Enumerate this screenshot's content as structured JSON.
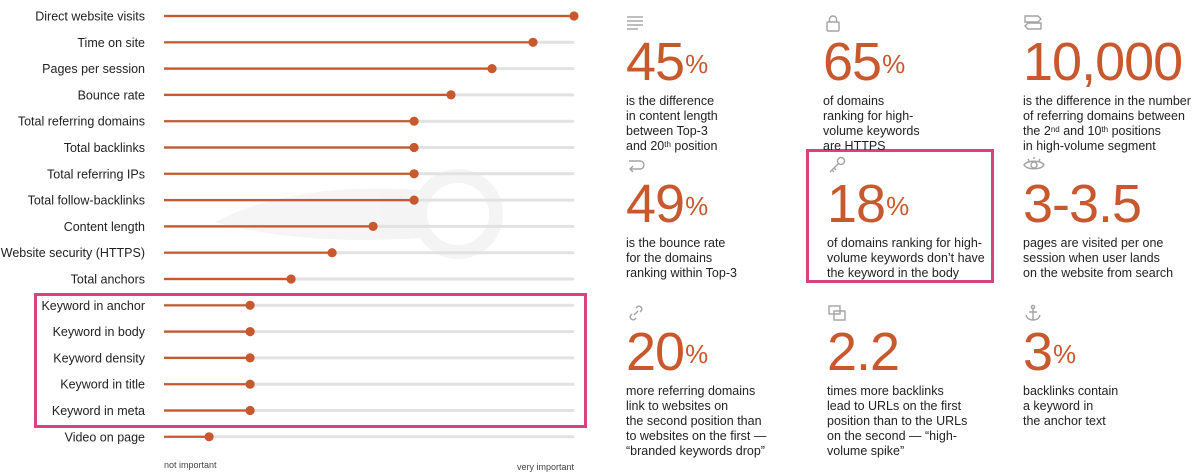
{
  "chart_data": {
    "type": "dot-bar",
    "title": "",
    "axis": {
      "min": 0,
      "max": 100,
      "low_label": "not important",
      "high_label": "very important"
    },
    "categories": [
      "Direct website visits",
      "Time on site",
      "Pages per session",
      "Bounce rate",
      "Total referring domains",
      "Total backlinks",
      "Total referring IPs",
      "Total follow-backlinks",
      "Content length",
      "Website security (HTTPS)",
      "Total anchors",
      "Keyword in anchor",
      "Keyword in body",
      "Keyword density",
      "Keyword in title",
      "Keyword in meta",
      "Video on page"
    ],
    "values": [
      100,
      90,
      80,
      70,
      61,
      61,
      61,
      61,
      51,
      41,
      31,
      21,
      21,
      21,
      21,
      21,
      11
    ],
    "highlighted": [
      "Keyword in anchor",
      "Keyword in body",
      "Keyword density",
      "Keyword in title",
      "Keyword in meta"
    ]
  },
  "colors": {
    "accent": "#c8592e",
    "highlight": "#d6437e",
    "track": "#e2e2e2"
  },
  "stats": [
    {
      "icon": "lines-icon",
      "value": "45",
      "suffix": "%",
      "lines": [
        [
          {
            "t": "is the difference"
          }
        ],
        [
          {
            "t": "in content length"
          }
        ],
        [
          {
            "t": "between Top-3"
          }
        ],
        [
          {
            "t": "and 20"
          },
          {
            "t": "th",
            "sup": true
          },
          {
            "t": " position"
          }
        ]
      ]
    },
    {
      "icon": "lock-icon",
      "value": "65",
      "suffix": "%",
      "lines": [
        [
          {
            "t": "of domains"
          }
        ],
        [
          {
            "t": "ranking for high-"
          }
        ],
        [
          {
            "t": "volume keywords"
          }
        ],
        [
          {
            "t": "are HTTPS"
          }
        ]
      ]
    },
    {
      "icon": "signpost-icon",
      "value": "10,000",
      "suffix": "",
      "lines": [
        [
          {
            "t": "is the difference in the number"
          }
        ],
        [
          {
            "t": "of referring domains between"
          }
        ],
        [
          {
            "t": "the 2"
          },
          {
            "t": "nd",
            "sup": true
          },
          {
            "t": " and 10"
          },
          {
            "t": "th",
            "sup": true
          },
          {
            "t": " positions"
          }
        ],
        [
          {
            "t": "in high-volume segment"
          }
        ]
      ]
    },
    {
      "icon": "return-arrow-icon",
      "value": "49",
      "suffix": "%",
      "lines": [
        [
          {
            "t": "is the bounce rate"
          }
        ],
        [
          {
            "t": "for the domains"
          }
        ],
        [
          {
            "t": "ranking within Top-3"
          }
        ]
      ]
    },
    {
      "icon": "key-icon",
      "value": "18",
      "suffix": "%",
      "lines": [
        [
          {
            "t": "of domains ranking for high-"
          }
        ],
        [
          {
            "t": "volume keywords don’t have"
          }
        ],
        [
          {
            "t": "the keyword in the body"
          }
        ]
      ]
    },
    {
      "icon": "eye-icon",
      "value": "3-3.5",
      "suffix": "",
      "lines": [
        [
          {
            "t": "pages are visited per one"
          }
        ],
        [
          {
            "t": "session when user lands"
          }
        ],
        [
          {
            "t": "on the website from search"
          }
        ]
      ]
    },
    {
      "icon": "link-icon",
      "value": "20",
      "suffix": "%",
      "lines": [
        [
          {
            "t": "more referring domains"
          }
        ],
        [
          {
            "t": "link to websites on"
          }
        ],
        [
          {
            "t": "the second position than"
          }
        ],
        [
          {
            "t": "to websites on the first —"
          }
        ],
        [
          {
            "t": "“branded keywords drop”"
          }
        ]
      ]
    },
    {
      "icon": "windows-icon",
      "value": "2.2",
      "suffix": "",
      "lines": [
        [
          {
            "t": "times more backlinks"
          }
        ],
        [
          {
            "t": "lead to URLs on the first"
          }
        ],
        [
          {
            "t": "position than to the URLs"
          }
        ],
        [
          {
            "t": "on the second — “high-"
          }
        ],
        [
          {
            "t": "volume spike”"
          }
        ]
      ]
    },
    {
      "icon": "anchor-icon",
      "value": "3",
      "suffix": "%",
      "lines": [
        [
          {
            "t": "backlinks contain"
          }
        ],
        [
          {
            "t": "a keyword in"
          }
        ],
        [
          {
            "t": "the anchor text"
          }
        ]
      ]
    }
  ]
}
